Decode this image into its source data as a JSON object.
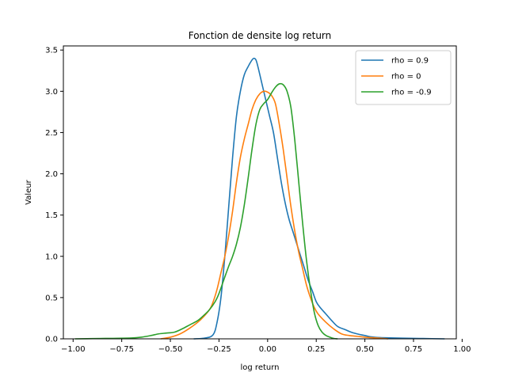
{
  "chart_data": {
    "type": "line",
    "title": "Fonction de densite log return",
    "xlabel": "log return",
    "ylabel": "Valeur",
    "xlim": [
      -1.05,
      0.97
    ],
    "ylim": [
      0,
      3.55
    ],
    "xticks": [
      -1.0,
      -0.75,
      -0.5,
      -0.25,
      0.0,
      0.25,
      0.5,
      0.75,
      1.0
    ],
    "xtick_labels": [
      "−1.00",
      "−0.75",
      "−0.50",
      "−0.25",
      "0.00",
      "0.25",
      "0.50",
      "0.75",
      "1.00"
    ],
    "yticks": [
      0.0,
      0.5,
      1.0,
      1.5,
      2.0,
      2.5,
      3.0,
      3.5
    ],
    "ytick_labels": [
      "0.0",
      "0.5",
      "1.0",
      "1.5",
      "2.0",
      "2.5",
      "3.0",
      "3.5"
    ],
    "grid": false,
    "legend_position": "top-right",
    "series": [
      {
        "name": "rho = 0.9",
        "color": "#1f77b4",
        "points": [
          [
            -0.38,
            0.0
          ],
          [
            -0.32,
            0.01
          ],
          [
            -0.28,
            0.05
          ],
          [
            -0.26,
            0.2
          ],
          [
            -0.24,
            0.5
          ],
          [
            -0.22,
            1.0
          ],
          [
            -0.2,
            1.6
          ],
          [
            -0.18,
            2.2
          ],
          [
            -0.16,
            2.7
          ],
          [
            -0.14,
            3.0
          ],
          [
            -0.12,
            3.2
          ],
          [
            -0.1,
            3.3
          ],
          [
            -0.08,
            3.38
          ],
          [
            -0.07,
            3.4
          ],
          [
            -0.06,
            3.38
          ],
          [
            -0.05,
            3.3
          ],
          [
            -0.03,
            3.1
          ],
          [
            -0.01,
            2.9
          ],
          [
            0.01,
            2.7
          ],
          [
            0.03,
            2.5
          ],
          [
            0.05,
            2.2
          ],
          [
            0.07,
            1.9
          ],
          [
            0.09,
            1.65
          ],
          [
            0.11,
            1.45
          ],
          [
            0.13,
            1.3
          ],
          [
            0.15,
            1.15
          ],
          [
            0.17,
            1.0
          ],
          [
            0.19,
            0.85
          ],
          [
            0.21,
            0.7
          ],
          [
            0.23,
            0.58
          ],
          [
            0.25,
            0.45
          ],
          [
            0.27,
            0.38
          ],
          [
            0.3,
            0.3
          ],
          [
            0.33,
            0.22
          ],
          [
            0.36,
            0.15
          ],
          [
            0.4,
            0.11
          ],
          [
            0.43,
            0.08
          ],
          [
            0.46,
            0.06
          ],
          [
            0.5,
            0.04
          ],
          [
            0.53,
            0.025
          ],
          [
            0.58,
            0.015
          ],
          [
            0.63,
            0.012
          ],
          [
            0.7,
            0.008
          ],
          [
            0.8,
            0.004
          ],
          [
            0.91,
            0.0
          ]
        ]
      },
      {
        "name": "rho = 0",
        "color": "#ff7f0e",
        "points": [
          [
            -0.55,
            0.0
          ],
          [
            -0.5,
            0.02
          ],
          [
            -0.45,
            0.06
          ],
          [
            -0.4,
            0.13
          ],
          [
            -0.35,
            0.22
          ],
          [
            -0.3,
            0.35
          ],
          [
            -0.28,
            0.45
          ],
          [
            -0.26,
            0.6
          ],
          [
            -0.24,
            0.8
          ],
          [
            -0.22,
            1.0
          ],
          [
            -0.2,
            1.25
          ],
          [
            -0.18,
            1.55
          ],
          [
            -0.16,
            1.9
          ],
          [
            -0.14,
            2.2
          ],
          [
            -0.12,
            2.42
          ],
          [
            -0.1,
            2.6
          ],
          [
            -0.08,
            2.78
          ],
          [
            -0.06,
            2.9
          ],
          [
            -0.04,
            2.97
          ],
          [
            -0.02,
            3.0
          ],
          [
            0.0,
            2.99
          ],
          [
            0.02,
            2.95
          ],
          [
            0.04,
            2.85
          ],
          [
            0.06,
            2.6
          ],
          [
            0.08,
            2.3
          ],
          [
            0.1,
            1.95
          ],
          [
            0.12,
            1.6
          ],
          [
            0.14,
            1.3
          ],
          [
            0.16,
            1.05
          ],
          [
            0.18,
            0.85
          ],
          [
            0.2,
            0.65
          ],
          [
            0.22,
            0.5
          ],
          [
            0.24,
            0.38
          ],
          [
            0.26,
            0.3
          ],
          [
            0.3,
            0.2
          ],
          [
            0.34,
            0.12
          ],
          [
            0.38,
            0.06
          ],
          [
            0.42,
            0.04
          ],
          [
            0.46,
            0.03
          ],
          [
            0.5,
            0.02
          ],
          [
            0.56,
            0.01
          ],
          [
            0.62,
            0.0
          ]
        ]
      },
      {
        "name": "rho = -0.9",
        "color": "#2ca02c",
        "points": [
          [
            -0.99,
            0.0
          ],
          [
            -0.9,
            0.003
          ],
          [
            -0.8,
            0.006
          ],
          [
            -0.7,
            0.01
          ],
          [
            -0.65,
            0.02
          ],
          [
            -0.6,
            0.04
          ],
          [
            -0.56,
            0.06
          ],
          [
            -0.52,
            0.07
          ],
          [
            -0.48,
            0.08
          ],
          [
            -0.44,
            0.12
          ],
          [
            -0.4,
            0.17
          ],
          [
            -0.36,
            0.22
          ],
          [
            -0.33,
            0.28
          ],
          [
            -0.3,
            0.35
          ],
          [
            -0.27,
            0.45
          ],
          [
            -0.25,
            0.55
          ],
          [
            -0.22,
            0.75
          ],
          [
            -0.2,
            0.88
          ],
          [
            -0.18,
            1.0
          ],
          [
            -0.16,
            1.15
          ],
          [
            -0.14,
            1.35
          ],
          [
            -0.12,
            1.62
          ],
          [
            -0.1,
            1.95
          ],
          [
            -0.08,
            2.3
          ],
          [
            -0.06,
            2.6
          ],
          [
            -0.04,
            2.78
          ],
          [
            -0.02,
            2.85
          ],
          [
            0.0,
            2.9
          ],
          [
            0.02,
            2.98
          ],
          [
            0.04,
            3.05
          ],
          [
            0.06,
            3.09
          ],
          [
            0.08,
            3.08
          ],
          [
            0.1,
            3.0
          ],
          [
            0.12,
            2.8
          ],
          [
            0.14,
            2.4
          ],
          [
            0.16,
            1.9
          ],
          [
            0.18,
            1.4
          ],
          [
            0.2,
            0.95
          ],
          [
            0.22,
            0.6
          ],
          [
            0.24,
            0.32
          ],
          [
            0.26,
            0.16
          ],
          [
            0.28,
            0.08
          ],
          [
            0.3,
            0.04
          ],
          [
            0.32,
            0.02
          ],
          [
            0.34,
            0.005
          ],
          [
            0.36,
            0.0
          ]
        ]
      }
    ]
  }
}
